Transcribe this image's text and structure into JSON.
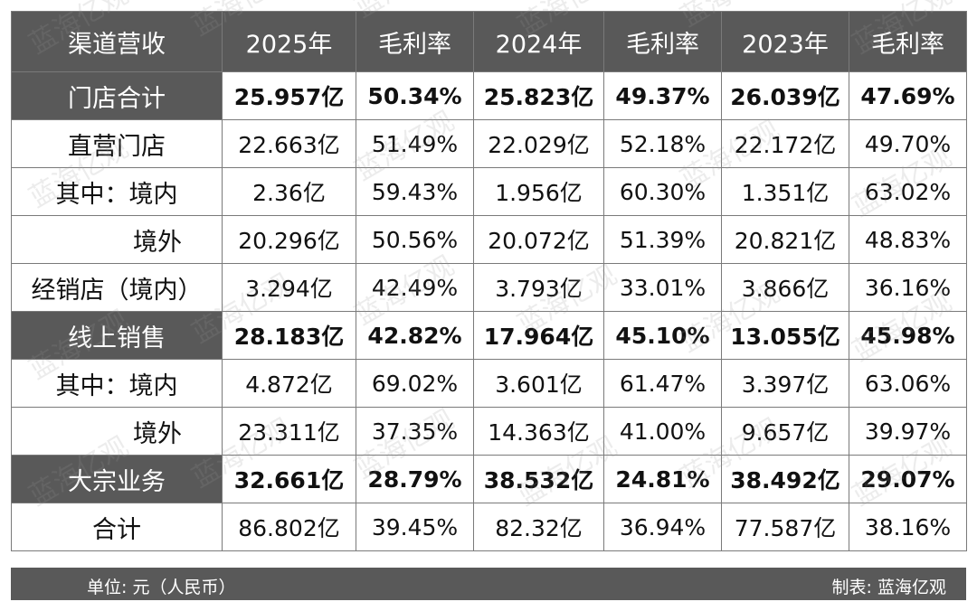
{
  "table": {
    "header": [
      "渠道营收",
      "2025年",
      "毛利率",
      "2024年",
      "毛利率",
      "2023年",
      "毛利率"
    ],
    "rows": [
      [
        "门店合计",
        "25.957亿",
        "50.34%",
        "25.823亿",
        "49.37%",
        "26.039亿",
        "47.69%"
      ],
      [
        "直营门店",
        "22.663亿",
        "51.49%",
        "22.029亿",
        "52.18%",
        "22.172亿",
        "49.70%"
      ],
      [
        "其中：境内",
        "2.36亿",
        "59.43%",
        "1.956亿",
        "60.30%",
        "1.351亿",
        "63.02%"
      ],
      [
        "境外",
        "20.296亿",
        "50.56%",
        "20.072亿",
        "51.39%",
        "20.821亿",
        "48.83%"
      ],
      [
        "经销店（境内）",
        "3.294亿",
        "42.49%",
        "3.793亿",
        "33.01%",
        "3.866亿",
        "36.16%"
      ],
      [
        "线上销售",
        "28.183亿",
        "42.82%",
        "17.964亿",
        "45.10%",
        "13.055亿",
        "45.98%"
      ],
      [
        "其中：境内",
        "4.872亿",
        "69.02%",
        "3.601亿",
        "61.47%",
        "3.397亿",
        "63.06%"
      ],
      [
        "境外",
        "23.311亿",
        "37.35%",
        "14.363亿",
        "41.00%",
        "9.657亿",
        "39.97%"
      ],
      [
        "大宗业务",
        "32.661亿",
        "28.79%",
        "38.532亿",
        "24.81%",
        "38.492亿",
        "29.07%"
      ],
      [
        "合计",
        "86.802亿",
        "39.45%",
        "82.32亿",
        "36.94%",
        "77.587亿",
        "38.16%"
      ]
    ]
  },
  "footer": {
    "left": "单位: 元（人民币）",
    "right": "制表: 蓝海亿观"
  },
  "watermark": "蓝海亿观"
}
